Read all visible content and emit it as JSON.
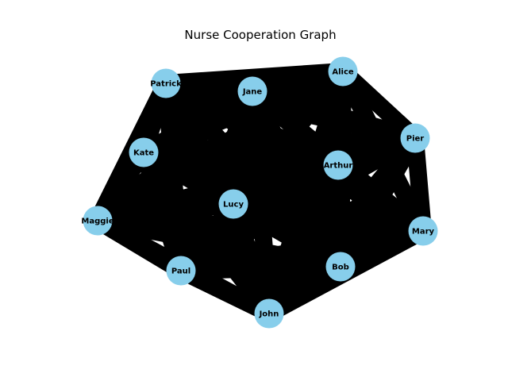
{
  "title": "Nurse Cooperation Graph",
  "colors": {
    "node": "#87ceeb",
    "edge": "#000000",
    "background": "#ffffff"
  },
  "nodes": [
    {
      "id": "Patrick",
      "label": "Patrick"
    },
    {
      "id": "Jane",
      "label": "Jane"
    },
    {
      "id": "Alice",
      "label": "Alice"
    },
    {
      "id": "Pier",
      "label": "Pier"
    },
    {
      "id": "Kate",
      "label": "Kate"
    },
    {
      "id": "Arthur",
      "label": "Arthur"
    },
    {
      "id": "Lucy",
      "label": "Lucy"
    },
    {
      "id": "Maggie",
      "label": "Maggie"
    },
    {
      "id": "Mary",
      "label": "Mary"
    },
    {
      "id": "Paul",
      "label": "Paul"
    },
    {
      "id": "Bob",
      "label": "Bob"
    },
    {
      "id": "John",
      "label": "John"
    }
  ],
  "edges": "all pairs (complete graph)"
}
